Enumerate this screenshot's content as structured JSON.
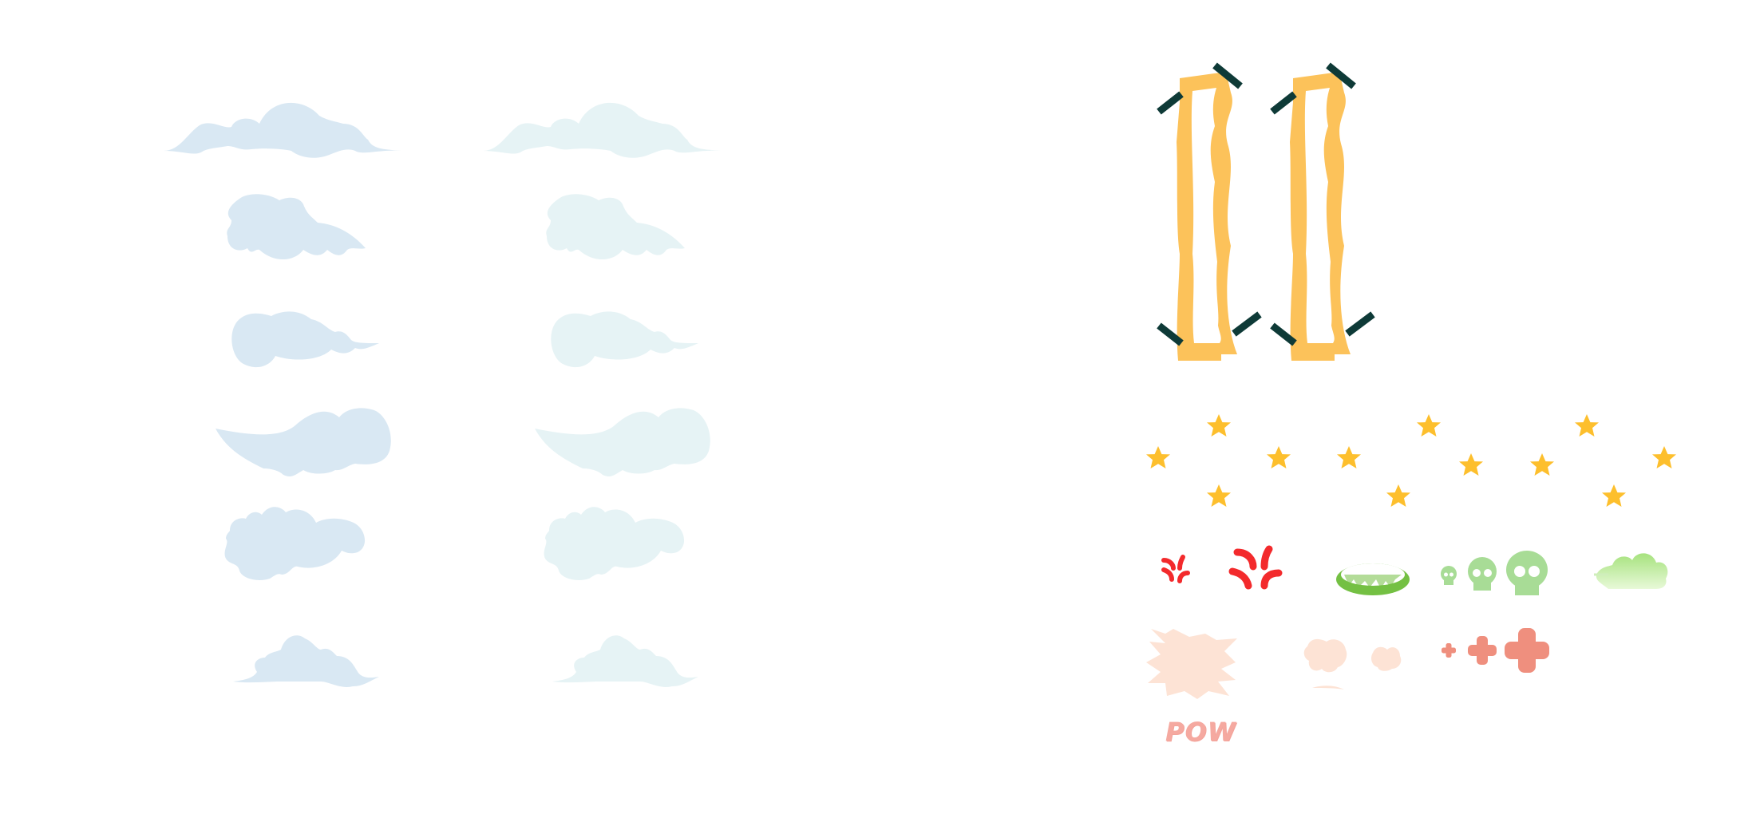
{
  "sheet": {
    "colors": {
      "cloud_blue": "#d9e8f3",
      "cloud_pale": "#e6f3f5",
      "scroll_gold": "#fcc25a",
      "scroll_tape": "#0e3a37",
      "star": "#fdbf2d",
      "anger": "#f32a2c",
      "toxic_green": "#74c043",
      "skull_green": "#a8dc96",
      "gas_green": "#a6e27e",
      "burst_peach": "#fde3d5",
      "cross_salmon": "#ef8f7e",
      "pow_pink": "#f5a9a0"
    },
    "cloud_columns": [
      "blue",
      "pale"
    ],
    "cloud_shapes": [
      "wide-wisp-cloud",
      "puffy-tail-cloud",
      "round-cloud",
      "swoosh-cloud",
      "big-cumulus-cloud",
      "small-hill-cloud"
    ],
    "scrolls": [
      "scroll-left",
      "scroll-right"
    ],
    "icons": [
      "star-icon",
      "anger-vein-icon",
      "toxic-ring-icon",
      "skull-icon",
      "gas-cloud-icon",
      "burst-icon",
      "smoke-puff-icon",
      "cross-icon"
    ],
    "pow_label": "POW"
  }
}
